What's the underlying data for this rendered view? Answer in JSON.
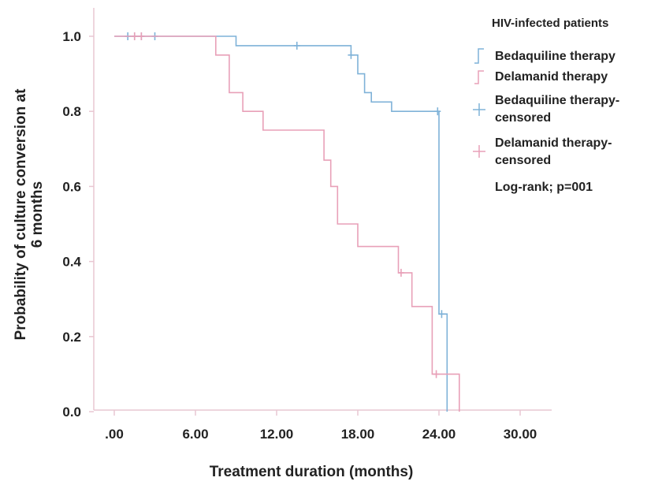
{
  "chart_data": {
    "type": "line",
    "subtype": "kaplan-meier-step",
    "xlabel": "Treatment duration (months)",
    "ylabel_line1": "Probability of culture conversion at",
    "ylabel_line2": "6 months",
    "xlim": [
      0,
      30
    ],
    "ylim": [
      0,
      1.0
    ],
    "x_ticks": [
      0,
      6,
      12,
      18,
      24,
      30
    ],
    "x_tick_labels": [
      ".00",
      "6.00",
      "12.00",
      "18.00",
      "24.00",
      "30.00"
    ],
    "y_ticks": [
      0,
      0.2,
      0.4,
      0.6,
      0.8,
      1.0
    ],
    "y_tick_labels": [
      "0.0",
      "0.2",
      "0.4",
      "0.6",
      "0.8",
      "1.0"
    ],
    "grid": false,
    "legend_position": "top-right",
    "legend_title": "HIV-infected patients",
    "legend_entries": [
      {
        "label": "Bedaquiline therapy",
        "color": "#7fb2d8",
        "kind": "line"
      },
      {
        "label": "Delamanid therapy",
        "color": "#e8a0b8",
        "kind": "line"
      },
      {
        "label_line1": "Bedaquiline therapy-",
        "label_line2": "censored",
        "color": "#7fb2d8",
        "kind": "censor"
      },
      {
        "label_line1": "Delamanid therapy-",
        "label_line2": "censored",
        "color": "#e8a0b8",
        "kind": "censor"
      }
    ],
    "annotation": "Log-rank; p=001",
    "series": [
      {
        "name": "Bedaquiline therapy",
        "color": "#7fb2d8",
        "step_points": [
          [
            0,
            1.0
          ],
          [
            9,
            1.0
          ],
          [
            9,
            0.975
          ],
          [
            17.5,
            0.975
          ],
          [
            17.5,
            0.95
          ],
          [
            18,
            0.95
          ],
          [
            18,
            0.9
          ],
          [
            18.5,
            0.9
          ],
          [
            18.5,
            0.85
          ],
          [
            19,
            0.85
          ],
          [
            19,
            0.825
          ],
          [
            20.5,
            0.825
          ],
          [
            20.5,
            0.8
          ],
          [
            24,
            0.8
          ],
          [
            24,
            0.26
          ],
          [
            24.6,
            0.26
          ],
          [
            24.6,
            0.0
          ]
        ],
        "censor_x": [
          1,
          1.5,
          2,
          3,
          13.5,
          17.5,
          23.9,
          24.2
        ]
      },
      {
        "name": "Delamanid therapy",
        "color": "#e8a0b8",
        "step_points": [
          [
            0,
            1.0
          ],
          [
            7.5,
            1.0
          ],
          [
            7.5,
            0.95
          ],
          [
            8.5,
            0.95
          ],
          [
            8.5,
            0.85
          ],
          [
            9.5,
            0.85
          ],
          [
            9.5,
            0.8
          ],
          [
            11,
            0.8
          ],
          [
            11,
            0.75
          ],
          [
            15.5,
            0.75
          ],
          [
            15.5,
            0.67
          ],
          [
            16,
            0.67
          ],
          [
            16,
            0.6
          ],
          [
            16.5,
            0.6
          ],
          [
            16.5,
            0.5
          ],
          [
            18,
            0.5
          ],
          [
            18,
            0.44
          ],
          [
            21,
            0.44
          ],
          [
            21,
            0.37
          ],
          [
            22,
            0.37
          ],
          [
            22,
            0.28
          ],
          [
            23.5,
            0.28
          ],
          [
            23.5,
            0.1
          ],
          [
            25.5,
            0.1
          ],
          [
            25.5,
            0.0
          ]
        ],
        "censor_x": [
          1.5,
          2,
          21.2,
          23.8
        ]
      }
    ]
  }
}
